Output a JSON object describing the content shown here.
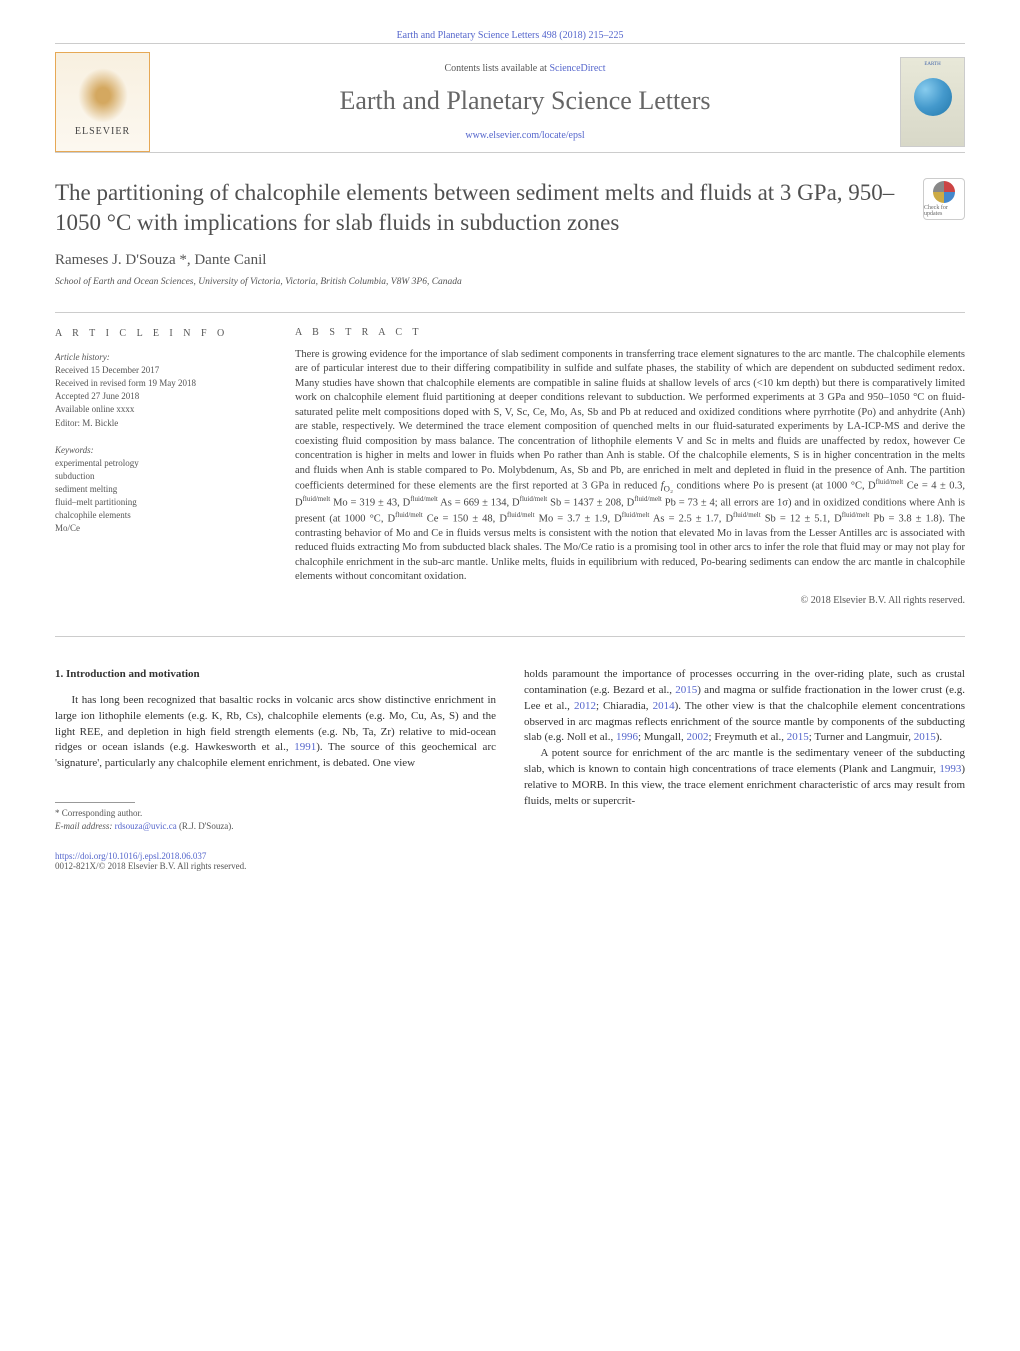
{
  "header": {
    "citation": "Earth and Planetary Science Letters 498 (2018) 215–225",
    "contents_prefix": "Contents lists available at ",
    "contents_link": "ScienceDirect",
    "journal_title": "Earth and Planetary Science Letters",
    "homepage_url": "www.elsevier.com/locate/epsl",
    "publisher_name": "ELSEVIER",
    "cover_title": "EARTH"
  },
  "article": {
    "title": "The partitioning of chalcophile elements between sediment melts and fluids at 3 GPa, 950–1050 °C with implications for slab fluids in subduction zones",
    "authors": "Rameses J. D'Souza *, Dante Canil",
    "affiliation": "School of Earth and Ocean Sciences, University of Victoria, Victoria, British Columbia, V8W 3P6, Canada",
    "crossmark_label": "Check for updates"
  },
  "info": {
    "heading": "A R T I C L E   I N F O",
    "history_label": "Article history:",
    "received": "Received 15 December 2017",
    "revised": "Received in revised form 19 May 2018",
    "accepted": "Accepted 27 June 2018",
    "available": "Available online xxxx",
    "editor": "Editor: M. Bickle",
    "keywords_label": "Keywords:",
    "keywords": [
      "experimental petrology",
      "subduction",
      "sediment melting",
      "fluid–melt partitioning",
      "chalcophile elements",
      "Mo/Ce"
    ]
  },
  "abstract": {
    "heading": "A B S T R A C T",
    "text_1": "There is growing evidence for the importance of slab sediment components in transferring trace element signatures to the arc mantle. The chalcophile elements are of particular interest due to their differing compatibility in sulfide and sulfate phases, the stability of which are dependent on subducted sediment redox. Many studies have shown that chalcophile elements are compatible in saline fluids at shallow levels of arcs (<10 km depth) but there is comparatively limited work on chalcophile element fluid partitioning at deeper conditions relevant to subduction. We performed experiments at 3 GPa and 950–1050 °C on fluid-saturated pelite melt compositions doped with S, V, Sc, Ce, Mo, As, Sb and Pb at reduced and oxidized conditions where pyrrhotite (Po) and anhydrite (Anh) are stable, respectively. We determined the trace element composition of quenched melts in our fluid-saturated experiments by LA-ICP-MS and derive the coexisting fluid composition by mass balance. The concentration of lithophile elements V and Sc in melts and fluids are unaffected by redox, however Ce concentration is higher in melts and lower in fluids when Po rather than Anh is stable. Of the chalcophile elements, S is in higher concentration in the melts and fluids when Anh is stable compared to Po. Molybdenum, As, Sb and Pb, are enriched in melt and depleted in fluid in the presence of Anh. The partition coefficients determined for these elements are the first reported at 3 GPa in reduced ",
    "fo2": "f",
    "fo2_sub": "O₂",
    "text_2": " conditions where Po is present (at 1000 °C, D",
    "sup_fm": "fluid/melt",
    "ce_val": " Ce = 4 ± 0.3, D",
    "mo_val": " Mo = 319 ± 43, D",
    "as_val": " As = 669 ± 134, D",
    "sb_val": " Sb = 1437 ± 208, D",
    "pb_val": " Pb = 73 ± 4; all errors are 1σ) and in oxidized conditions where Anh is present (at 1000 °C, D",
    "ce_val2": " Ce = 150 ± 48, D",
    "mo_val2": " Mo = 3.7 ± 1.9, D",
    "as_val2": " As = 2.5 ± 1.7, D",
    "sb_val2": " Sb = 12 ± 5.1, D",
    "pb_val2": " Pb = 3.8 ± 1.8). The contrasting behavior of Mo and Ce in fluids versus melts is consistent with the notion that elevated Mo in lavas from the Lesser Antilles arc is associated with reduced fluids extracting Mo from subducted black shales. The Mo/Ce ratio is a promising tool in other arcs to infer the role that fluid may or may not play for chalcophile enrichment in the sub-arc mantle. Unlike melts, fluids in equilibrium with reduced, Po-bearing sediments can endow the arc mantle in chalcophile elements without concomitant oxidation.",
    "copyright": "© 2018 Elsevier B.V. All rights reserved."
  },
  "body": {
    "section_heading": "1. Introduction and motivation",
    "col1_p1": "It has long been recognized that basaltic rocks in volcanic arcs show distinctive enrichment in large ion lithophile elements (e.g. K, Rb, Cs), chalcophile elements (e.g. Mo, Cu, As, S) and the light REE, and depletion in high field strength elements (e.g. Nb, Ta, Zr) relative to mid-ocean ridges or ocean islands (e.g. Hawkesworth et al., ",
    "col1_link1": "1991",
    "col1_p1b": "). The source of this geochemical arc 'signature', particularly any chalcophile element enrichment, is debated. One view",
    "col2_p1a": "holds paramount the importance of processes occurring in the over-riding plate, such as crustal contamination (e.g. Bezard et al., ",
    "col2_link1": "2015",
    "col2_p1b": ") and magma or sulfide fractionation in the lower crust (e.g. Lee et al., ",
    "col2_link2": "2012",
    "col2_p1c": "; Chiaradia, ",
    "col2_link3": "2014",
    "col2_p1d": "). The other view is that the chalcophile element concentrations observed in arc magmas reflects enrichment of the source mantle by components of the subducting slab (e.g. Noll et al., ",
    "col2_link4": "1996",
    "col2_p1e": "; Mungall, ",
    "col2_link5": "2002",
    "col2_p1f": "; Freymuth et al., ",
    "col2_link6": "2015",
    "col2_p1g": "; Turner and Langmuir, ",
    "col2_link7": "2015",
    "col2_p1h": ").",
    "col2_p2a": "A potent source for enrichment of the arc mantle is the sedimentary veneer of the subducting slab, which is known to contain high concentrations of trace elements (Plank and Langmuir, ",
    "col2_link8": "1993",
    "col2_p2b": ") relative to MORB. In this view, the trace element enrichment characteristic of arcs may result from fluids, melts or supercrit-"
  },
  "footnote": {
    "corresponding": "* Corresponding author.",
    "email_label": "E-mail address: ",
    "email": "rdsouza@uvic.ca",
    "email_name": " (R.J. D'Souza)."
  },
  "footer": {
    "doi": "https://doi.org/10.1016/j.epsl.2018.06.037",
    "issn": "0012-821X/© 2018 Elsevier B.V. All rights reserved."
  },
  "style": {
    "link_color": "#5566cc",
    "text_color": "#333333",
    "muted_color": "#555555",
    "border_color": "#cccccc"
  }
}
